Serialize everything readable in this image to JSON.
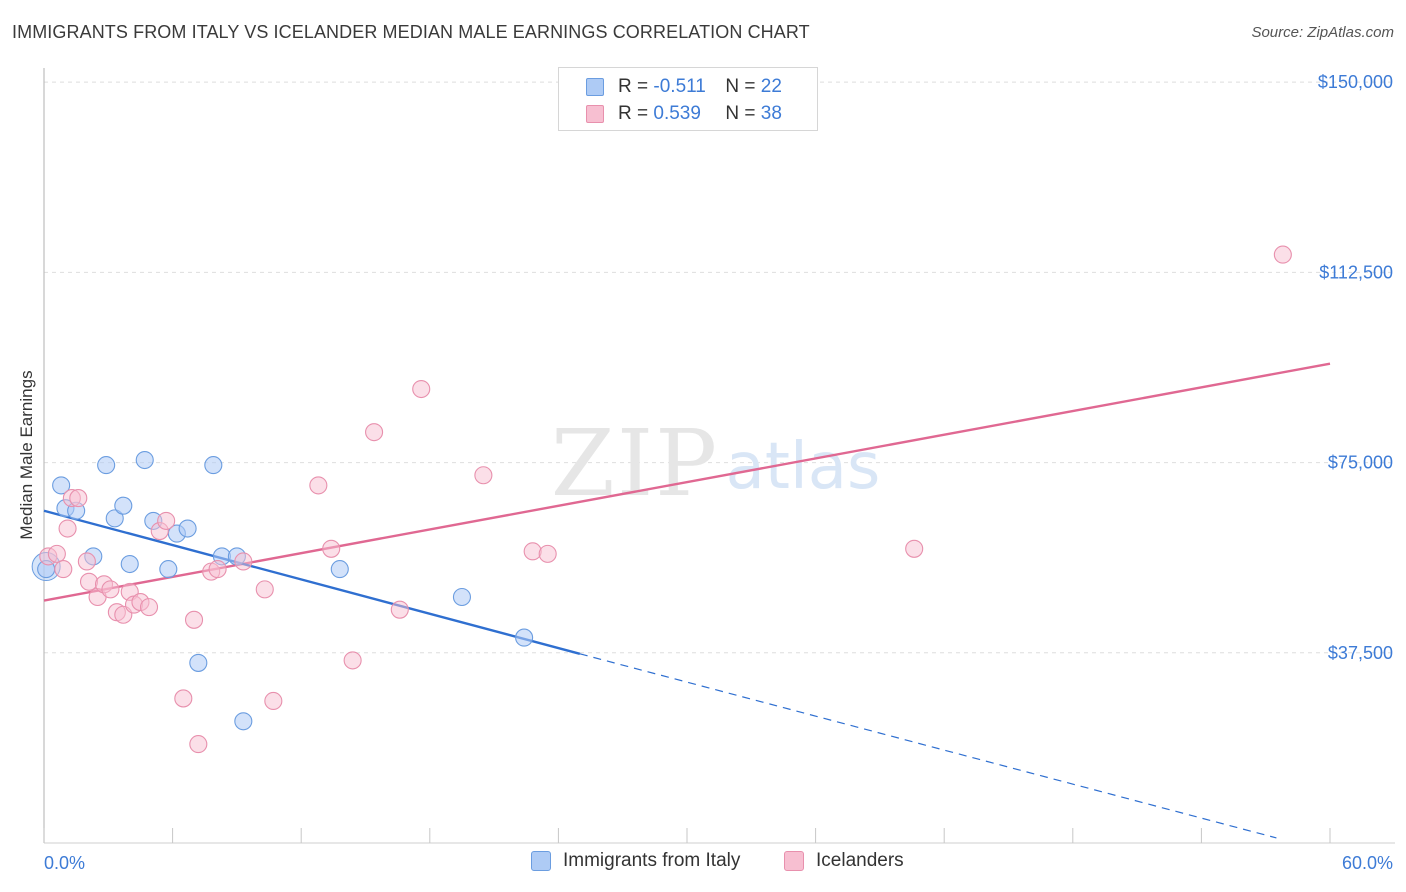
{
  "header": {
    "title": "IMMIGRANTS FROM ITALY VS ICELANDER MEDIAN MALE EARNINGS CORRELATION CHART",
    "source": "Source: ZipAtlas.com"
  },
  "watermark": {
    "zip": "ZIP",
    "atlas": "atlas"
  },
  "colors": {
    "blue_fill": "#aecbf5",
    "blue_stroke": "#6b9de0",
    "blue_line": "#2f6fd0",
    "pink_fill": "#f7bfd1",
    "pink_stroke": "#e890ad",
    "pink_line": "#e06892",
    "tick_label": "#3d7bd6"
  },
  "legend": {
    "rows": [
      {
        "r_label": "R =",
        "r_value": "-0.511",
        "n_label": "N =",
        "n_value": "22",
        "series": "blue"
      },
      {
        "r_label": "R =",
        "r_value": "0.539",
        "n_label": "N =",
        "n_value": "38",
        "series": "pink"
      }
    ]
  },
  "bottom_legend": {
    "items": [
      {
        "label": "Immigrants from Italy",
        "series": "blue"
      },
      {
        "label": "Icelanders",
        "series": "pink"
      }
    ]
  },
  "chart_data": {
    "type": "scatter",
    "title": "IMMIGRANTS FROM ITALY VS ICELANDER MEDIAN MALE EARNINGS CORRELATION CHART",
    "xlabel": "",
    "ylabel": "Median Male Earnings",
    "xlim": [
      0,
      60
    ],
    "ylim": [
      0,
      152000
    ],
    "x_tick_labels": [
      "0.0%",
      "60.0%"
    ],
    "y_ticks": [
      37500,
      75000,
      112500,
      150000
    ],
    "y_tick_labels": [
      "$37,500",
      "$75,000",
      "$112,500",
      "$150,000"
    ],
    "grid": true,
    "series": [
      {
        "name": "Immigrants from Italy",
        "color": "blue",
        "points": [
          [
            0.1,
            54000
          ],
          [
            0.8,
            70500
          ],
          [
            1.0,
            66000
          ],
          [
            1.5,
            65500
          ],
          [
            2.3,
            56500
          ],
          [
            2.9,
            74500
          ],
          [
            3.3,
            64000
          ],
          [
            3.7,
            66500
          ],
          [
            4.0,
            55000
          ],
          [
            4.7,
            75500
          ],
          [
            5.1,
            63500
          ],
          [
            5.8,
            54000
          ],
          [
            6.2,
            61000
          ],
          [
            6.7,
            62000
          ],
          [
            7.2,
            35500
          ],
          [
            7.9,
            74500
          ],
          [
            8.3,
            56500
          ],
          [
            9.0,
            56500
          ],
          [
            9.3,
            24000
          ],
          [
            13.8,
            54000
          ],
          [
            19.5,
            48500
          ],
          [
            22.4,
            40500
          ]
        ],
        "trend": {
          "x": [
            0,
            25
          ],
          "y": [
            65500,
            37300
          ]
        },
        "trend_dashed": {
          "x": [
            25,
            57.5
          ],
          "y": [
            37300,
            1000
          ]
        }
      },
      {
        "name": "Icelanders",
        "color": "pink",
        "points": [
          [
            0.2,
            56500
          ],
          [
            0.6,
            57000
          ],
          [
            0.9,
            54000
          ],
          [
            1.1,
            62000
          ],
          [
            1.3,
            68000
          ],
          [
            1.6,
            68000
          ],
          [
            2.0,
            55500
          ],
          [
            2.1,
            51500
          ],
          [
            2.5,
            48500
          ],
          [
            2.8,
            51000
          ],
          [
            3.1,
            50000
          ],
          [
            3.4,
            45500
          ],
          [
            3.7,
            45000
          ],
          [
            4.0,
            49500
          ],
          [
            4.2,
            47000
          ],
          [
            4.5,
            47500
          ],
          [
            4.9,
            46500
          ],
          [
            5.4,
            61500
          ],
          [
            5.7,
            63500
          ],
          [
            6.5,
            28500
          ],
          [
            7.0,
            44000
          ],
          [
            7.2,
            19500
          ],
          [
            7.8,
            53500
          ],
          [
            8.1,
            54000
          ],
          [
            9.3,
            55500
          ],
          [
            10.3,
            50000
          ],
          [
            10.7,
            28000
          ],
          [
            12.8,
            70500
          ],
          [
            13.4,
            58000
          ],
          [
            14.4,
            36000
          ],
          [
            15.4,
            81000
          ],
          [
            16.6,
            46000
          ],
          [
            17.6,
            89500
          ],
          [
            20.5,
            72500
          ],
          [
            22.8,
            57500
          ],
          [
            23.5,
            57000
          ],
          [
            40.6,
            58000
          ],
          [
            57.8,
            116000
          ]
        ],
        "trend": {
          "x": [
            0,
            60
          ],
          "y": [
            47800,
            94500
          ]
        }
      }
    ]
  }
}
